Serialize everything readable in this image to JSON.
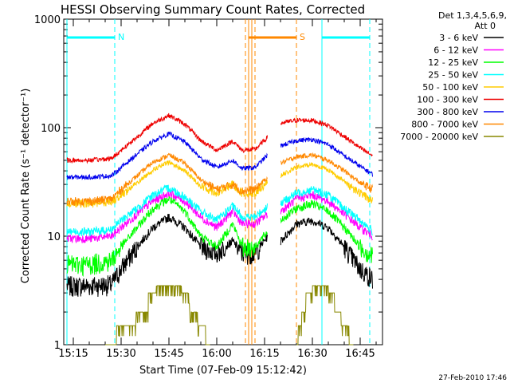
{
  "chart_data": {
    "type": "line",
    "title": "HESSI Observing Summary Count Rates, Corrected",
    "xlabel": "Start Time (07-Feb-09 15:12:42)",
    "ylabel": "Corrected Count Rate (s⁻¹ detector⁻¹)",
    "xlim": [
      "15:12",
      "16:52"
    ],
    "ylim": [
      1,
      1000
    ],
    "y_scale": "log",
    "x_ticks": [
      "15:15",
      "15:30",
      "15:45",
      "16:00",
      "16:15",
      "16:30",
      "16:45"
    ],
    "y_ticks": [
      "1",
      "10",
      "100",
      "1000"
    ],
    "timestamp": "27-Feb-2010 17:46",
    "legend_header": [
      "Det 1,3,4,5,6,9,",
      "Att 0"
    ],
    "legend_placement": "right",
    "data_gap": [
      "16:16",
      "16:20"
    ],
    "series": [
      {
        "name": "3 - 6 keV",
        "color": "#000000",
        "values": [
          {
            "t": "15:13",
            "v": 3.5
          },
          {
            "t": "15:20",
            "v": 3.5
          },
          {
            "t": "15:27",
            "v": 3.6
          },
          {
            "t": "15:30",
            "v": 5
          },
          {
            "t": "15:35",
            "v": 8
          },
          {
            "t": "15:40",
            "v": 12
          },
          {
            "t": "15:45",
            "v": 15
          },
          {
            "t": "15:50",
            "v": 12
          },
          {
            "t": "15:55",
            "v": 8
          },
          {
            "t": "16:00",
            "v": 7
          },
          {
            "t": "16:05",
            "v": 9
          },
          {
            "t": "16:08",
            "v": 7
          },
          {
            "t": "16:12",
            "v": 7
          },
          {
            "t": "16:16",
            "v": 10
          },
          {
            "t": "16:20",
            "v": 9
          },
          {
            "t": "16:25",
            "v": 13
          },
          {
            "t": "16:30",
            "v": 14
          },
          {
            "t": "16:35",
            "v": 12
          },
          {
            "t": "16:40",
            "v": 8
          },
          {
            "t": "16:45",
            "v": 5
          },
          {
            "t": "16:49",
            "v": 4
          }
        ]
      },
      {
        "name": "6 - 12 keV",
        "color": "#ff00ff",
        "values": [
          {
            "t": "15:13",
            "v": 9.5
          },
          {
            "t": "15:20",
            "v": 9.5
          },
          {
            "t": "15:27",
            "v": 10
          },
          {
            "t": "15:30",
            "v": 12
          },
          {
            "t": "15:35",
            "v": 16
          },
          {
            "t": "15:40",
            "v": 21
          },
          {
            "t": "15:45",
            "v": 25
          },
          {
            "t": "15:50",
            "v": 21
          },
          {
            "t": "15:55",
            "v": 15
          },
          {
            "t": "16:00",
            "v": 12
          },
          {
            "t": "16:05",
            "v": 17
          },
          {
            "t": "16:08",
            "v": 13
          },
          {
            "t": "16:12",
            "v": 13
          },
          {
            "t": "16:16",
            "v": 16
          },
          {
            "t": "16:20",
            "v": 17
          },
          {
            "t": "16:25",
            "v": 22
          },
          {
            "t": "16:30",
            "v": 24
          },
          {
            "t": "16:35",
            "v": 21
          },
          {
            "t": "16:40",
            "v": 16
          },
          {
            "t": "16:45",
            "v": 12
          },
          {
            "t": "16:49",
            "v": 10
          }
        ]
      },
      {
        "name": "12 - 25 keV",
        "color": "#00ff00",
        "values": [
          {
            "t": "15:13",
            "v": 5.5
          },
          {
            "t": "15:20",
            "v": 5.5
          },
          {
            "t": "15:27",
            "v": 6
          },
          {
            "t": "15:30",
            "v": 8
          },
          {
            "t": "15:35",
            "v": 12
          },
          {
            "t": "15:40",
            "v": 18
          },
          {
            "t": "15:45",
            "v": 22
          },
          {
            "t": "15:50",
            "v": 17
          },
          {
            "t": "15:55",
            "v": 10
          },
          {
            "t": "16:00",
            "v": 8
          },
          {
            "t": "16:05",
            "v": 13
          },
          {
            "t": "16:08",
            "v": 8
          },
          {
            "t": "16:12",
            "v": 8
          },
          {
            "t": "16:16",
            "v": 11
          },
          {
            "t": "16:20",
            "v": 14
          },
          {
            "t": "16:25",
            "v": 18
          },
          {
            "t": "16:30",
            "v": 20
          },
          {
            "t": "16:35",
            "v": 17
          },
          {
            "t": "16:40",
            "v": 12
          },
          {
            "t": "16:45",
            "v": 8
          },
          {
            "t": "16:49",
            "v": 6.5
          }
        ]
      },
      {
        "name": "25 - 50 keV",
        "color": "#00ffff",
        "values": [
          {
            "t": "15:13",
            "v": 11
          },
          {
            "t": "15:20",
            "v": 11
          },
          {
            "t": "15:27",
            "v": 11.5
          },
          {
            "t": "15:30",
            "v": 14
          },
          {
            "t": "15:35",
            "v": 18
          },
          {
            "t": "15:40",
            "v": 24
          },
          {
            "t": "15:45",
            "v": 28
          },
          {
            "t": "15:50",
            "v": 23
          },
          {
            "t": "15:55",
            "v": 17
          },
          {
            "t": "16:00",
            "v": 14
          },
          {
            "t": "16:05",
            "v": 19
          },
          {
            "t": "16:08",
            "v": 15
          },
          {
            "t": "16:12",
            "v": 15
          },
          {
            "t": "16:16",
            "v": 19
          },
          {
            "t": "16:20",
            "v": 20
          },
          {
            "t": "16:25",
            "v": 25
          },
          {
            "t": "16:30",
            "v": 27
          },
          {
            "t": "16:35",
            "v": 24
          },
          {
            "t": "16:40",
            "v": 18
          },
          {
            "t": "16:45",
            "v": 14
          },
          {
            "t": "16:49",
            "v": 11
          }
        ]
      },
      {
        "name": "50 - 100 keV",
        "color": "#ffcc00",
        "values": [
          {
            "t": "15:13",
            "v": 20
          },
          {
            "t": "15:20",
            "v": 20
          },
          {
            "t": "15:27",
            "v": 21
          },
          {
            "t": "15:30",
            "v": 24
          },
          {
            "t": "15:35",
            "v": 31
          },
          {
            "t": "15:40",
            "v": 41
          },
          {
            "t": "15:45",
            "v": 48
          },
          {
            "t": "15:50",
            "v": 40
          },
          {
            "t": "15:55",
            "v": 29
          },
          {
            "t": "16:00",
            "v": 25
          },
          {
            "t": "16:05",
            "v": 30
          },
          {
            "t": "16:08",
            "v": 25
          },
          {
            "t": "16:12",
            "v": 25
          },
          {
            "t": "16:16",
            "v": 32
          },
          {
            "t": "16:20",
            "v": 36
          },
          {
            "t": "16:25",
            "v": 43
          },
          {
            "t": "16:30",
            "v": 46
          },
          {
            "t": "16:35",
            "v": 41
          },
          {
            "t": "16:40",
            "v": 32
          },
          {
            "t": "16:45",
            "v": 25
          },
          {
            "t": "16:49",
            "v": 21
          }
        ]
      },
      {
        "name": "100 - 300 keV",
        "color": "#ee0000",
        "values": [
          {
            "t": "15:13",
            "v": 50
          },
          {
            "t": "15:20",
            "v": 50
          },
          {
            "t": "15:27",
            "v": 52
          },
          {
            "t": "15:30",
            "v": 62
          },
          {
            "t": "15:35",
            "v": 82
          },
          {
            "t": "15:40",
            "v": 110
          },
          {
            "t": "15:45",
            "v": 130
          },
          {
            "t": "15:50",
            "v": 108
          },
          {
            "t": "15:55",
            "v": 76
          },
          {
            "t": "16:00",
            "v": 62
          },
          {
            "t": "16:05",
            "v": 75
          },
          {
            "t": "16:08",
            "v": 62
          },
          {
            "t": "16:12",
            "v": 63
          },
          {
            "t": "16:16",
            "v": 82
          },
          {
            "t": "16:20",
            "v": 110
          },
          {
            "t": "16:25",
            "v": 117
          },
          {
            "t": "16:30",
            "v": 117
          },
          {
            "t": "16:35",
            "v": 105
          },
          {
            "t": "16:40",
            "v": 83
          },
          {
            "t": "16:45",
            "v": 65
          },
          {
            "t": "16:49",
            "v": 55
          }
        ]
      },
      {
        "name": "300 - 800 keV",
        "color": "#0000ee",
        "values": [
          {
            "t": "15:13",
            "v": 35
          },
          {
            "t": "15:20",
            "v": 35
          },
          {
            "t": "15:27",
            "v": 36
          },
          {
            "t": "15:30",
            "v": 43
          },
          {
            "t": "15:35",
            "v": 57
          },
          {
            "t": "15:40",
            "v": 75
          },
          {
            "t": "15:45",
            "v": 88
          },
          {
            "t": "15:50",
            "v": 74
          },
          {
            "t": "15:55",
            "v": 52
          },
          {
            "t": "16:00",
            "v": 43
          },
          {
            "t": "16:05",
            "v": 50
          },
          {
            "t": "16:08",
            "v": 42
          },
          {
            "t": "16:12",
            "v": 43
          },
          {
            "t": "16:16",
            "v": 56
          },
          {
            "t": "16:20",
            "v": 68
          },
          {
            "t": "16:25",
            "v": 76
          },
          {
            "t": "16:30",
            "v": 78
          },
          {
            "t": "16:35",
            "v": 70
          },
          {
            "t": "16:40",
            "v": 55
          },
          {
            "t": "16:45",
            "v": 44
          },
          {
            "t": "16:49",
            "v": 37
          }
        ]
      },
      {
        "name": "800 - 7000 keV",
        "color": "#ff8800",
        "values": [
          {
            "t": "15:13",
            "v": 21
          },
          {
            "t": "15:20",
            "v": 21
          },
          {
            "t": "15:27",
            "v": 22
          },
          {
            "t": "15:30",
            "v": 27
          },
          {
            "t": "15:35",
            "v": 36
          },
          {
            "t": "15:40",
            "v": 48
          },
          {
            "t": "15:45",
            "v": 56
          },
          {
            "t": "15:50",
            "v": 47
          },
          {
            "t": "15:55",
            "v": 33
          },
          {
            "t": "16:00",
            "v": 27
          },
          {
            "t": "16:05",
            "v": 30
          },
          {
            "t": "16:08",
            "v": 26
          },
          {
            "t": "16:12",
            "v": 27
          },
          {
            "t": "16:16",
            "v": 35
          },
          {
            "t": "16:20",
            "v": 47
          },
          {
            "t": "16:25",
            "v": 54
          },
          {
            "t": "16:30",
            "v": 56
          },
          {
            "t": "16:35",
            "v": 50
          },
          {
            "t": "16:40",
            "v": 40
          },
          {
            "t": "16:45",
            "v": 31
          },
          {
            "t": "16:49",
            "v": 27
          }
        ]
      },
      {
        "name": "7000 - 20000 keV",
        "color": "#888800",
        "values": [
          {
            "t": "15:25",
            "v": 1
          },
          {
            "t": "15:32",
            "v": 1.5
          },
          {
            "t": "15:37",
            "v": 2
          },
          {
            "t": "15:40",
            "v": 3
          },
          {
            "t": "15:42",
            "v": 3.5
          },
          {
            "t": "15:48",
            "v": 3.5
          },
          {
            "t": "15:50",
            "v": 3
          },
          {
            "t": "15:53",
            "v": 2
          },
          {
            "t": "15:55",
            "v": 1.5
          },
          {
            "t": "15:58",
            "v": 1
          },
          {
            "t": "16:25",
            "v": 1
          },
          {
            "t": "16:27",
            "v": 2
          },
          {
            "t": "16:29",
            "v": 3
          },
          {
            "t": "16:31",
            "v": 3.5
          },
          {
            "t": "16:34",
            "v": 3.5
          },
          {
            "t": "16:36",
            "v": 3
          },
          {
            "t": "16:38",
            "v": 2
          },
          {
            "t": "16:40",
            "v": 1.5
          },
          {
            "t": "16:43",
            "v": 1
          }
        ]
      }
    ],
    "annotations": {
      "flags": [
        {
          "label": "N",
          "color": "#00ffff",
          "bars": [
            [
              "15:13",
              "15:28"
            ],
            [
              "16:33",
              "16:48"
            ]
          ],
          "solid_lines": [
            "15:13",
            "16:33"
          ],
          "dashed_lines": [
            "15:28",
            "16:48"
          ]
        },
        {
          "label": "S",
          "color": "#ff8800",
          "bars": [
            [
              "16:10",
              "16:25"
            ]
          ],
          "solid_lines": [
            "16:10",
            "16:11"
          ],
          "dashed_lines": [
            "16:09",
            "16:12",
            "16:25"
          ]
        }
      ]
    }
  }
}
